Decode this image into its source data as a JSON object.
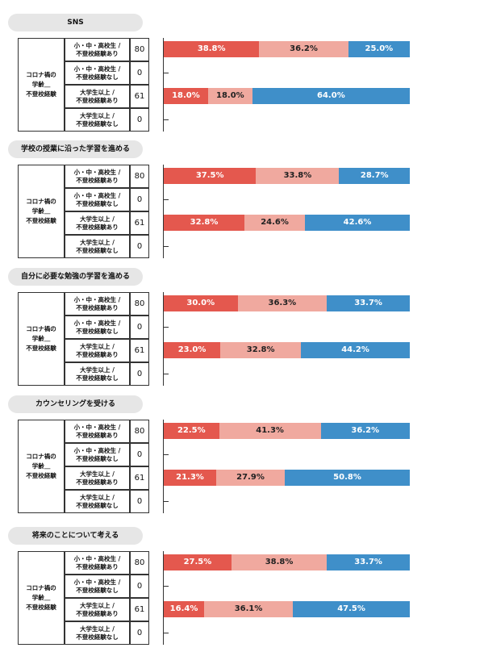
{
  "group_label_lines": [
    "コロナ禍の",
    "学齢＿",
    "不登校経験"
  ],
  "row_labels": [
    [
      "小・中・高校生 /",
      "不登校経験あり"
    ],
    [
      "小・中・高校生 /",
      "不登校経験なし"
    ],
    [
      "大学生以上 /",
      "不登校経験あり"
    ],
    [
      "大学生以上 /",
      "不登校経験なし"
    ]
  ],
  "colors": {
    "seg1": "#e4584e",
    "seg2": "#f0a99f",
    "seg3": "#3f8fc9"
  },
  "chart_data": [
    {
      "type": "bar",
      "title": "SNS",
      "rows": [
        {
          "n": "80",
          "values": [
            38.8,
            36.2,
            25.0
          ],
          "labels": [
            "38.8%",
            "36.2%",
            "25.0%"
          ]
        },
        {
          "n": "0",
          "values": [],
          "labels": []
        },
        {
          "n": "61",
          "values": [
            18.0,
            18.0,
            64.0
          ],
          "labels": [
            "18.0%",
            "18.0%",
            "64.0%"
          ]
        },
        {
          "n": "0",
          "values": [],
          "labels": []
        }
      ]
    },
    {
      "type": "bar",
      "title": "学校の授業に沿った学習を進める",
      "rows": [
        {
          "n": "80",
          "values": [
            37.5,
            33.8,
            28.7
          ],
          "labels": [
            "37.5%",
            "33.8%",
            "28.7%"
          ]
        },
        {
          "n": "0",
          "values": [],
          "labels": []
        },
        {
          "n": "61",
          "values": [
            32.8,
            24.6,
            42.6
          ],
          "labels": [
            "32.8%",
            "24.6%",
            "42.6%"
          ]
        },
        {
          "n": "0",
          "values": [],
          "labels": []
        }
      ]
    },
    {
      "type": "bar",
      "title": "自分に必要な勉強の学習を進める",
      "rows": [
        {
          "n": "80",
          "values": [
            30.0,
            36.3,
            33.7
          ],
          "labels": [
            "30.0%",
            "36.3%",
            "33.7%"
          ]
        },
        {
          "n": "0",
          "values": [],
          "labels": []
        },
        {
          "n": "61",
          "values": [
            23.0,
            32.8,
            44.2
          ],
          "labels": [
            "23.0%",
            "32.8%",
            "44.2%"
          ]
        },
        {
          "n": "0",
          "values": [],
          "labels": []
        }
      ]
    },
    {
      "type": "bar",
      "title": "カウンセリングを受ける",
      "rows": [
        {
          "n": "80",
          "values": [
            22.5,
            41.3,
            36.2
          ],
          "labels": [
            "22.5%",
            "41.3%",
            "36.2%"
          ]
        },
        {
          "n": "0",
          "values": [],
          "labels": []
        },
        {
          "n": "61",
          "values": [
            21.3,
            27.9,
            50.8
          ],
          "labels": [
            "21.3%",
            "27.9%",
            "50.8%"
          ]
        },
        {
          "n": "0",
          "values": [],
          "labels": []
        }
      ]
    },
    {
      "type": "bar",
      "title": "将来のことについて考える",
      "rows": [
        {
          "n": "80",
          "values": [
            27.5,
            38.8,
            33.7
          ],
          "labels": [
            "27.5%",
            "38.8%",
            "33.7%"
          ]
        },
        {
          "n": "0",
          "values": [],
          "labels": []
        },
        {
          "n": "61",
          "values": [
            16.4,
            36.1,
            47.5
          ],
          "labels": [
            "16.4%",
            "36.1%",
            "47.5%"
          ]
        },
        {
          "n": "0",
          "values": [],
          "labels": []
        }
      ]
    }
  ]
}
